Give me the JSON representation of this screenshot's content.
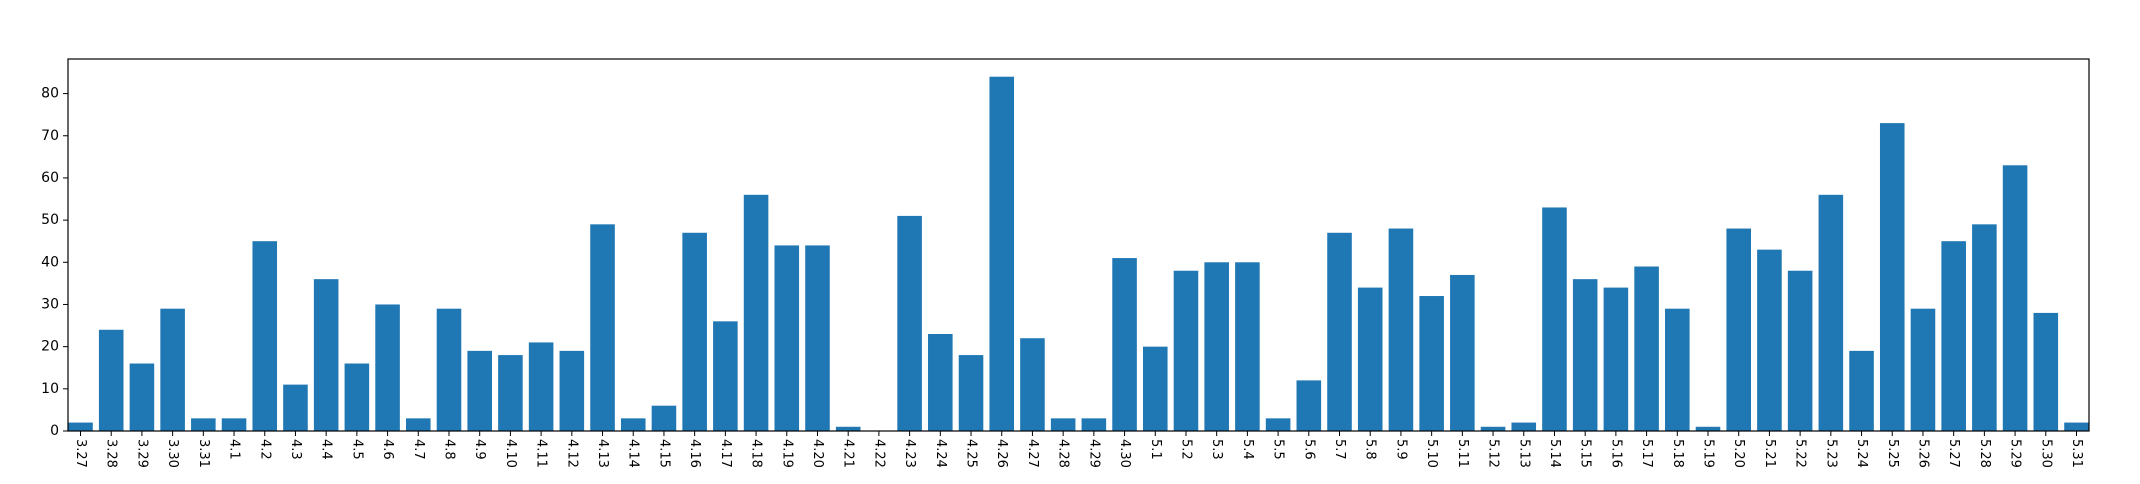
{
  "chart_data": {
    "type": "bar",
    "title": "",
    "xlabel": "",
    "ylabel": "",
    "ylim": [
      0,
      88.2
    ],
    "yticks": [
      0,
      10,
      20,
      30,
      40,
      50,
      60,
      70,
      80
    ],
    "bar_color": "#1f77b4",
    "grid": false,
    "categories": [
      "3.27",
      "3.28",
      "3.29",
      "3.30",
      "3.31",
      "4.1",
      "4.2",
      "4.3",
      "4.4",
      "4.5",
      "4.6",
      "4.7",
      "4.8",
      "4.9",
      "4.10",
      "4.11",
      "4.12",
      "4.13",
      "4.14",
      "4.15",
      "4.16",
      "4.17",
      "4.18",
      "4.19",
      "4.20",
      "4.21",
      "4.22",
      "4.23",
      "4.24",
      "4.25",
      "4.26",
      "4.27",
      "4.28",
      "4.29",
      "4.30",
      "5.1",
      "5.2",
      "5.3",
      "5.4",
      "5.5",
      "5.6",
      "5.7",
      "5.8",
      "5.9",
      "5.10",
      "5.11",
      "5.12",
      "5.13",
      "5.14",
      "5.15",
      "5.16",
      "5.17",
      "5.18",
      "5.19",
      "5.20",
      "5.21",
      "5.22",
      "5.23",
      "5.24",
      "5.25",
      "5.26",
      "5.27",
      "5.28",
      "5.29",
      "5.30",
      "5.31"
    ],
    "values": [
      2,
      24,
      16,
      29,
      3,
      3,
      45,
      11,
      36,
      16,
      30,
      3,
      29,
      19,
      18,
      21,
      19,
      49,
      3,
      6,
      47,
      26,
      56,
      44,
      44,
      1,
      0,
      51,
      23,
      18,
      84,
      22,
      3,
      3,
      41,
      20,
      38,
      40,
      40,
      3,
      12,
      47,
      34,
      48,
      32,
      37,
      1,
      2,
      53,
      36,
      34,
      39,
      29,
      1,
      48,
      43,
      38,
      56,
      19,
      73,
      29,
      45,
      49,
      63,
      28,
      2
    ]
  }
}
